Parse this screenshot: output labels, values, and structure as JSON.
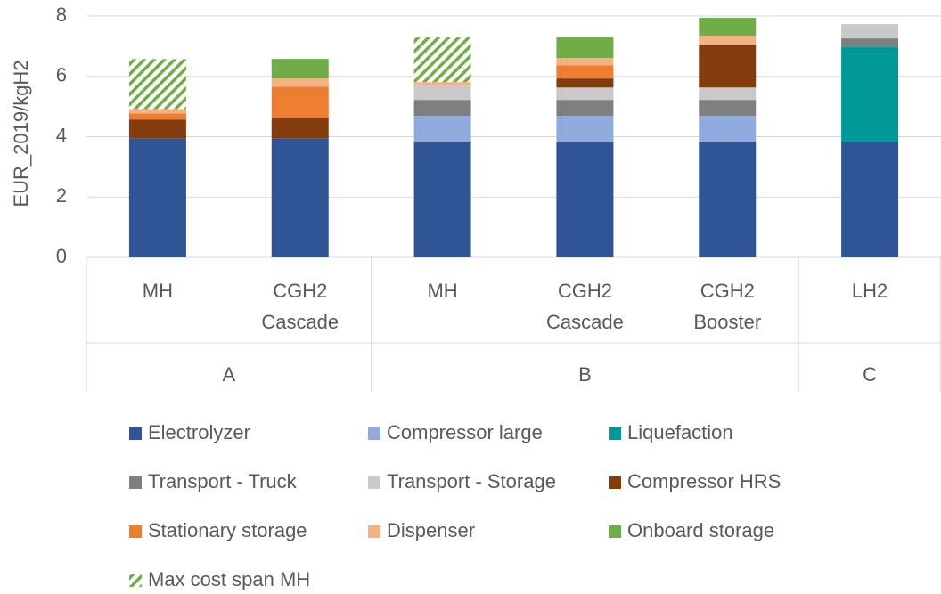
{
  "chart_data": {
    "type": "stacked_bar",
    "y_label": "EUR_2019/kgH2",
    "ylim": [
      0,
      8
    ],
    "yticks": [
      0,
      2,
      4,
      6,
      8
    ],
    "grid": true,
    "groups": [
      {
        "name": "A",
        "categories": [
          [
            "MH"
          ],
          [
            "CGH2",
            "Cascade"
          ]
        ]
      },
      {
        "name": "B",
        "categories": [
          [
            "MH"
          ],
          [
            "CGH2",
            "Cascade"
          ],
          [
            "CGH2",
            "Booster"
          ]
        ]
      },
      {
        "name": "C",
        "categories": [
          [
            "LH2"
          ]
        ]
      }
    ],
    "series": [
      {
        "name": "Electrolyzer",
        "color": "#2f5597",
        "values": [
          3.95,
          3.95,
          3.83,
          3.83,
          3.83,
          3.83
        ]
      },
      {
        "name": "Compressor large",
        "color": "#8faadc",
        "values": [
          0,
          0,
          0.86,
          0.86,
          0.86,
          0
        ]
      },
      {
        "name": "Liquefaction",
        "color": "#009999",
        "values": [
          0,
          0,
          0,
          0,
          0,
          3.16
        ]
      },
      {
        "name": "Transport - Truck",
        "color": "#7f7f7f",
        "values": [
          0,
          0,
          0.53,
          0.53,
          0.53,
          0.27
        ]
      },
      {
        "name": "Transport - Storage",
        "color": "#c9c9c9",
        "values": [
          0,
          0,
          0.47,
          0.41,
          0.41,
          0.47
        ]
      },
      {
        "name": "Compressor HRS",
        "color": "#843c0c",
        "values": [
          0.62,
          0.68,
          0,
          0.3,
          1.42,
          0
        ]
      },
      {
        "name": "Stationary storage",
        "color": "#ed7d31",
        "values": [
          0.2,
          1.03,
          0,
          0.44,
          0,
          0
        ]
      },
      {
        "name": "Dispenser",
        "color": "#f4b183",
        "values": [
          0.15,
          0.27,
          0.12,
          0.24,
          0.3,
          0
        ]
      },
      {
        "name": "Onboard storage",
        "color": "#70ad47",
        "values": [
          0,
          0.65,
          0,
          0.68,
          0.59,
          0
        ]
      },
      {
        "name": "Max cost span MH",
        "color": "#70ad47",
        "pattern": "hatch",
        "values": [
          1.65,
          0,
          1.48,
          0,
          0,
          0
        ]
      }
    ]
  }
}
